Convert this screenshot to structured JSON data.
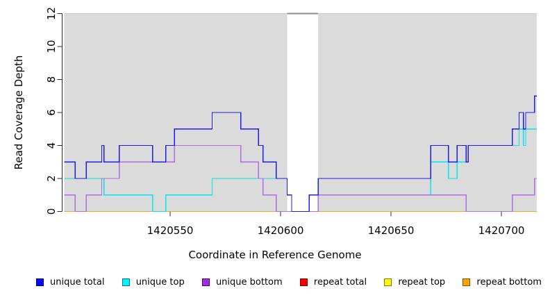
{
  "chart_data": {
    "type": "line",
    "subtype": "step-post",
    "title": "",
    "xlabel": "Coordinate in Reference Genome",
    "ylabel": "Read Coverage Depth",
    "xlim": [
      1420502,
      1420716
    ],
    "ylim": [
      0,
      12
    ],
    "x_ticks": [
      "1420550",
      "1420600",
      "1420650",
      "1420700"
    ],
    "x_tick_values": [
      1420550,
      1420600,
      1420650,
      1420700
    ],
    "y_ticks": [
      "0",
      "2",
      "4",
      "6",
      "8",
      "10",
      "12"
    ],
    "y_tick_values": [
      0,
      2,
      4,
      6,
      8,
      10,
      12
    ],
    "grid": false,
    "legend_position": "bottom",
    "plot_background": "#dbdbdb",
    "top_border_color": "#c8c8c8",
    "gap_region": {
      "from": 1420603,
      "to": 1420617,
      "fill": "#ffffff",
      "top_border": "#8f8f8f"
    },
    "axis_color": "#2b2b2b",
    "text_color": "#000000",
    "series": [
      {
        "name": "repeat total",
        "color": "#ee0000",
        "steps": [
          [
            1420502,
            0
          ]
        ]
      },
      {
        "name": "repeat top",
        "color": "#ffff00",
        "steps": [
          [
            1420502,
            0
          ]
        ]
      },
      {
        "name": "repeat bottom",
        "color": "#ffa21c",
        "steps": [
          [
            1420502,
            0
          ]
        ]
      },
      {
        "name": "unique top",
        "color": "#00e5ee",
        "steps": [
          [
            1420502,
            2
          ],
          [
            1420520,
            1
          ],
          [
            1420542,
            0
          ],
          [
            1420548,
            1
          ],
          [
            1420569,
            2
          ],
          [
            1420603,
            1
          ],
          [
            1420605,
            0
          ],
          [
            1420613,
            1
          ],
          [
            1420668,
            3
          ],
          [
            1420676,
            2
          ],
          [
            1420680,
            3
          ],
          [
            1420685,
            4
          ],
          [
            1420708,
            5
          ],
          [
            1420710,
            4
          ],
          [
            1420711,
            5
          ]
        ]
      },
      {
        "name": "unique bottom",
        "color": "#b36be3",
        "steps": [
          [
            1420502,
            1
          ],
          [
            1420507,
            0
          ],
          [
            1420512,
            1
          ],
          [
            1420519,
            2
          ],
          [
            1420527,
            3
          ],
          [
            1420552,
            4
          ],
          [
            1420582,
            3
          ],
          [
            1420590,
            2
          ],
          [
            1420592,
            1
          ],
          [
            1420598,
            0
          ],
          [
            1420617,
            1
          ],
          [
            1420684,
            0
          ],
          [
            1420705,
            1
          ],
          [
            1420715,
            2
          ]
        ]
      },
      {
        "name": "unique total",
        "color": "#1c1ce8",
        "steps": [
          [
            1420502,
            3
          ],
          [
            1420507,
            2
          ],
          [
            1420512,
            3
          ],
          [
            1420519,
            4
          ],
          [
            1420520,
            3
          ],
          [
            1420527,
            4
          ],
          [
            1420542,
            3
          ],
          [
            1420548,
            4
          ],
          [
            1420552,
            5
          ],
          [
            1420569,
            6
          ],
          [
            1420582,
            5
          ],
          [
            1420590,
            4
          ],
          [
            1420592,
            3
          ],
          [
            1420598,
            2
          ],
          [
            1420603,
            1
          ],
          [
            1420605,
            0
          ],
          [
            1420613,
            1
          ],
          [
            1420617,
            2
          ],
          [
            1420668,
            4
          ],
          [
            1420676,
            3
          ],
          [
            1420680,
            4
          ],
          [
            1420684,
            3
          ],
          [
            1420685,
            4
          ],
          [
            1420705,
            5
          ],
          [
            1420708,
            6
          ],
          [
            1420710,
            5
          ],
          [
            1420711,
            6
          ],
          [
            1420715,
            7
          ]
        ]
      }
    ]
  },
  "legend": {
    "items": [
      {
        "label": "unique total",
        "fill": "#0808f0",
        "border": "#000080"
      },
      {
        "label": "unique top",
        "fill": "#00f5ff",
        "border": "#007a8a"
      },
      {
        "label": "unique bottom",
        "fill": "#9b30e0",
        "border": "#4b0082"
      },
      {
        "label": "repeat total",
        "fill": "#f50000",
        "border": "#7a0000"
      },
      {
        "label": "repeat top",
        "fill": "#ffff00",
        "border": "#7a7a00"
      },
      {
        "label": "repeat bottom",
        "fill": "#ffa500",
        "border": "#7a5200"
      }
    ]
  }
}
